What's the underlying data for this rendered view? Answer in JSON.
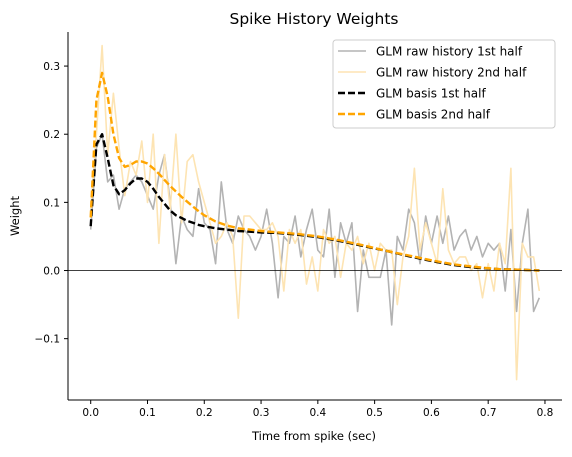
{
  "chart_data": {
    "type": "line",
    "title": "Spike History Weights",
    "xlabel": "Time from spike (sec)",
    "ylabel": "Weight",
    "xlim": [
      -0.04,
      0.83
    ],
    "ylim": [
      -0.19,
      0.35
    ],
    "x_ticks": [
      0.0,
      0.1,
      0.2,
      0.3,
      0.4,
      0.5,
      0.6,
      0.7,
      0.8
    ],
    "x_tick_labels": [
      "0.0",
      "0.1",
      "0.2",
      "0.3",
      "0.4",
      "0.5",
      "0.6",
      "0.7",
      "0.8"
    ],
    "y_ticks": [
      -0.1,
      0.0,
      0.1,
      0.2,
      0.3
    ],
    "y_tick_labels": [
      "−0.1",
      "0.0",
      "0.1",
      "0.2",
      "0.3"
    ],
    "grid": false,
    "legend_position": "top-right",
    "zero_line": true,
    "series": [
      {
        "name": "GLM raw history 1st half",
        "style": "solid",
        "color": "#b3b3b3",
        "x": [
          0.0,
          0.01,
          0.02,
          0.03,
          0.04,
          0.05,
          0.06,
          0.07,
          0.08,
          0.09,
          0.1,
          0.11,
          0.12,
          0.13,
          0.14,
          0.15,
          0.16,
          0.17,
          0.18,
          0.19,
          0.2,
          0.21,
          0.22,
          0.23,
          0.24,
          0.25,
          0.26,
          0.27,
          0.28,
          0.29,
          0.3,
          0.31,
          0.32,
          0.33,
          0.34,
          0.35,
          0.36,
          0.37,
          0.38,
          0.39,
          0.4,
          0.41,
          0.42,
          0.43,
          0.44,
          0.45,
          0.46,
          0.47,
          0.48,
          0.49,
          0.5,
          0.51,
          0.52,
          0.53,
          0.54,
          0.55,
          0.56,
          0.57,
          0.58,
          0.59,
          0.6,
          0.61,
          0.62,
          0.63,
          0.64,
          0.65,
          0.66,
          0.67,
          0.68,
          0.69,
          0.7,
          0.71,
          0.72,
          0.73,
          0.74,
          0.75,
          0.76,
          0.77,
          0.78,
          0.79
        ],
        "y": [
          0.06,
          0.18,
          0.2,
          0.13,
          0.14,
          0.09,
          0.12,
          0.13,
          0.14,
          0.13,
          0.11,
          0.09,
          0.14,
          0.17,
          0.1,
          0.01,
          0.08,
          0.06,
          0.05,
          0.12,
          0.07,
          0.06,
          0.01,
          0.13,
          0.06,
          0.04,
          0.08,
          0.06,
          0.05,
          0.03,
          0.05,
          0.09,
          0.04,
          -0.04,
          0.05,
          0.04,
          0.08,
          0.02,
          0.06,
          0.09,
          0.03,
          0.02,
          0.09,
          -0.01,
          0.07,
          0.04,
          0.07,
          -0.06,
          0.03,
          -0.01,
          -0.01,
          -0.01,
          0.03,
          -0.08,
          0.05,
          0.03,
          0.09,
          0.07,
          0.01,
          0.08,
          0.04,
          0.08,
          0.04,
          0.08,
          0.03,
          0.05,
          0.06,
          0.03,
          0.05,
          0.02,
          0.04,
          0.03,
          0.04,
          -0.03,
          0.06,
          -0.06,
          0.04,
          0.09,
          -0.06,
          -0.04
        ]
      },
      {
        "name": "GLM raw history 2nd half",
        "style": "solid",
        "color": "#fde4b3",
        "x": [
          0.0,
          0.01,
          0.02,
          0.03,
          0.04,
          0.05,
          0.06,
          0.07,
          0.08,
          0.09,
          0.1,
          0.11,
          0.12,
          0.13,
          0.14,
          0.15,
          0.16,
          0.17,
          0.18,
          0.19,
          0.2,
          0.21,
          0.22,
          0.23,
          0.24,
          0.25,
          0.26,
          0.27,
          0.28,
          0.29,
          0.3,
          0.31,
          0.32,
          0.33,
          0.34,
          0.35,
          0.36,
          0.37,
          0.38,
          0.39,
          0.4,
          0.41,
          0.42,
          0.43,
          0.44,
          0.45,
          0.46,
          0.47,
          0.48,
          0.49,
          0.5,
          0.51,
          0.52,
          0.53,
          0.54,
          0.55,
          0.56,
          0.57,
          0.58,
          0.59,
          0.6,
          0.61,
          0.62,
          0.63,
          0.64,
          0.65,
          0.66,
          0.67,
          0.68,
          0.69,
          0.7,
          0.71,
          0.72,
          0.73,
          0.74,
          0.75,
          0.76,
          0.77,
          0.78,
          0.79
        ],
        "y": [
          0.09,
          0.2,
          0.33,
          0.17,
          0.26,
          0.18,
          0.11,
          0.16,
          0.14,
          0.19,
          0.1,
          0.2,
          0.04,
          0.17,
          0.09,
          0.2,
          0.07,
          0.16,
          0.17,
          0.13,
          0.1,
          0.07,
          0.04,
          0.05,
          0.07,
          0.05,
          -0.07,
          0.08,
          0.08,
          0.07,
          0.06,
          0.06,
          0.07,
          0.05,
          -0.03,
          0.06,
          0.04,
          0.06,
          -0.02,
          0.02,
          -0.03,
          0.06,
          0.04,
          0.05,
          -0.01,
          0.04,
          0.03,
          0.05,
          0.01,
          0.04,
          0.0,
          0.04,
          0.03,
          0.03,
          -0.05,
          0.02,
          0.05,
          0.15,
          0.03,
          0.07,
          0.04,
          0.01,
          0.12,
          0.03,
          0.01,
          0.02,
          0.02,
          0.0,
          0.01,
          -0.04,
          0.01,
          -0.03,
          0.04,
          0.01,
          0.15,
          -0.16,
          0.04,
          0.02,
          0.02,
          -0.03
        ]
      },
      {
        "name": "GLM basis 1st half",
        "style": "dashed",
        "color": "#000000",
        "x": [
          0.0,
          0.01,
          0.02,
          0.03,
          0.04,
          0.05,
          0.06,
          0.07,
          0.08,
          0.09,
          0.1,
          0.11,
          0.12,
          0.13,
          0.14,
          0.15,
          0.16,
          0.17,
          0.18,
          0.19,
          0.2,
          0.22,
          0.24,
          0.26,
          0.28,
          0.3,
          0.33,
          0.36,
          0.4,
          0.44,
          0.48,
          0.52,
          0.56,
          0.6,
          0.64,
          0.68,
          0.72,
          0.76,
          0.79
        ],
        "y": [
          0.065,
          0.185,
          0.2,
          0.165,
          0.125,
          0.112,
          0.118,
          0.128,
          0.135,
          0.135,
          0.13,
          0.12,
          0.108,
          0.098,
          0.088,
          0.081,
          0.077,
          0.073,
          0.07,
          0.067,
          0.065,
          0.062,
          0.06,
          0.058,
          0.057,
          0.056,
          0.055,
          0.053,
          0.049,
          0.043,
          0.036,
          0.029,
          0.021,
          0.014,
          0.008,
          0.004,
          0.002,
          0.001,
          0.0
        ]
      },
      {
        "name": "GLM basis 2nd half",
        "style": "dashed",
        "color": "#ffa500",
        "x": [
          0.0,
          0.01,
          0.02,
          0.03,
          0.04,
          0.05,
          0.06,
          0.07,
          0.08,
          0.09,
          0.1,
          0.11,
          0.12,
          0.13,
          0.14,
          0.15,
          0.16,
          0.17,
          0.18,
          0.19,
          0.2,
          0.22,
          0.24,
          0.26,
          0.28,
          0.3,
          0.33,
          0.36,
          0.4,
          0.44,
          0.48,
          0.52,
          0.56,
          0.6,
          0.64,
          0.68,
          0.72,
          0.76,
          0.79
        ],
        "y": [
          0.078,
          0.25,
          0.29,
          0.255,
          0.2,
          0.165,
          0.152,
          0.155,
          0.16,
          0.16,
          0.157,
          0.15,
          0.142,
          0.133,
          0.124,
          0.116,
          0.108,
          0.101,
          0.094,
          0.087,
          0.081,
          0.072,
          0.066,
          0.062,
          0.06,
          0.058,
          0.056,
          0.054,
          0.05,
          0.044,
          0.037,
          0.029,
          0.022,
          0.015,
          0.009,
          0.005,
          0.002,
          0.001,
          0.0
        ]
      }
    ]
  }
}
